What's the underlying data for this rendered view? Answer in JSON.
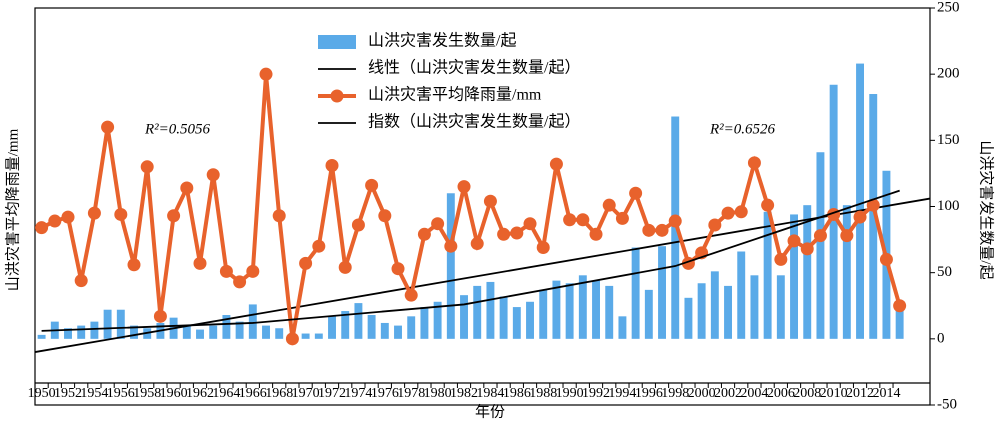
{
  "chart_data": {
    "type": "bar-line",
    "x": [
      1950,
      1951,
      1952,
      1953,
      1954,
      1955,
      1956,
      1957,
      1958,
      1959,
      1960,
      1961,
      1962,
      1963,
      1964,
      1965,
      1966,
      1967,
      1968,
      1969,
      1970,
      1971,
      1972,
      1973,
      1974,
      1975,
      1976,
      1977,
      1978,
      1979,
      1980,
      1981,
      1982,
      1983,
      1984,
      1985,
      1986,
      1987,
      1988,
      1989,
      1990,
      1991,
      1992,
      1993,
      1994,
      1995,
      1996,
      1997,
      1998,
      1999,
      2000,
      2001,
      2002,
      2003,
      2004,
      2005,
      2006,
      2007,
      2008,
      2009,
      2010,
      2011,
      2012,
      2013,
      2014,
      2015
    ],
    "xlim": [
      1949.5,
      2017.3
    ],
    "xticks": [
      1950,
      1952,
      1954,
      1956,
      1958,
      1960,
      1962,
      1964,
      1966,
      1968,
      1970,
      1972,
      1974,
      1976,
      1978,
      1980,
      1982,
      1984,
      1986,
      1988,
      1990,
      1992,
      1994,
      1996,
      1998,
      2000,
      2002,
      2004,
      2006,
      2008,
      2010,
      2012,
      2014
    ],
    "xlabel": "年份",
    "ylabel": "山洪灾害平均降雨量/mm",
    "y2label": "山洪灾害发生数量/起",
    "ylim": [
      -50,
      250
    ],
    "y2lim": [
      -50,
      250
    ],
    "y2ticks": [
      -50,
      0,
      50,
      100,
      150,
      200,
      250
    ],
    "series": [
      {
        "name": "山洪灾害发生数量/起",
        "kind": "bar",
        "axis": "y2",
        "color": "#5aaae8",
        "values": [
          3,
          13,
          8,
          10,
          13,
          22,
          22,
          10,
          8,
          12,
          16,
          10,
          7,
          10,
          18,
          13,
          26,
          10,
          8,
          3,
          4,
          4,
          17,
          21,
          27,
          18,
          12,
          10,
          17,
          24,
          28,
          110,
          33,
          40,
          43,
          32,
          24,
          28,
          37,
          44,
          42,
          48,
          44,
          40,
          17,
          69,
          37,
          70,
          168,
          31,
          42,
          51,
          40,
          66,
          48,
          96,
          48,
          94,
          101,
          141,
          192,
          101,
          208,
          185,
          127,
          22
        ]
      },
      {
        "name": "线性（山洪灾害发生数量/起）",
        "kind": "trend",
        "axis": "y2",
        "color": "#000000",
        "x": [
          1949.5,
          2017.3
        ],
        "values": [
          -10,
          106
        ]
      },
      {
        "name": "山洪灾害平均降雨量/mm",
        "kind": "line",
        "axis": "y",
        "color": "#e8622c",
        "values": [
          84,
          89,
          92,
          44,
          95,
          160,
          94,
          56,
          130,
          17,
          93,
          114,
          57,
          124,
          51,
          43,
          51,
          200,
          93,
          0,
          57,
          70,
          131,
          54,
          86,
          116,
          93,
          53,
          33,
          79,
          87,
          70,
          115,
          72,
          104,
          79,
          80,
          87,
          69,
          132,
          90,
          90,
          79,
          101,
          91,
          110,
          82,
          82,
          89,
          57,
          65,
          86,
          95,
          96,
          133,
          101,
          60,
          74,
          68,
          78,
          94,
          78,
          92,
          101,
          60,
          25
        ]
      },
      {
        "name": "指数（山洪灾害发生数量/起）",
        "kind": "trend",
        "axis": "y2",
        "color": "#000000",
        "x": [
          1950,
          1966,
          1982,
          1998,
          2015
        ],
        "values": [
          6,
          12,
          26,
          55,
          112
        ]
      }
    ],
    "annotations": [
      "R²=0.5056",
      "R²=0.6526"
    ]
  }
}
